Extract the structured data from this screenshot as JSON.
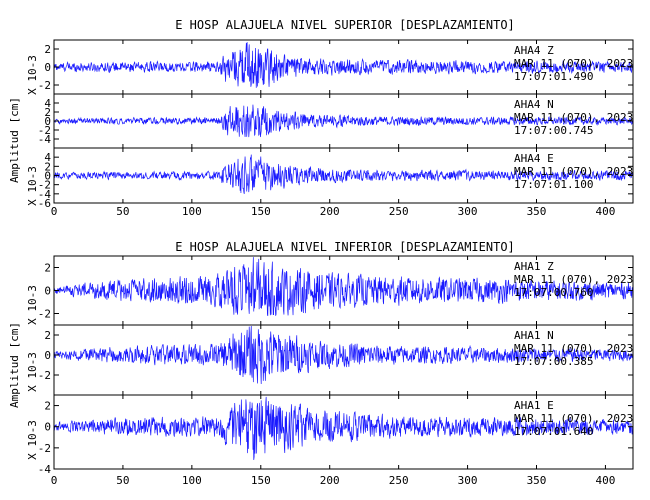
{
  "chart_data": [
    {
      "type": "line",
      "title": "E HOSP ALAJUELA NIVEL SUPERIOR [DESPLAZAMIENTO]",
      "ylabel": "Amplitud [cm]",
      "scale_label": "X 10-3",
      "xlim": [
        0,
        420
      ],
      "x_ticks": [
        0,
        50,
        100,
        150,
        200,
        250,
        300,
        350,
        400
      ],
      "series_color": "#1a1aff",
      "panels": [
        {
          "name": "AHA4 Z",
          "station": "AHA4",
          "component": "Z",
          "date": "MAR 11 (070), 2023",
          "time": "17:07:01.490",
          "ylim": [
            -3,
            3
          ],
          "y_ticks": [
            -2,
            0,
            2
          ],
          "envelope": [
            [
              0,
              0.5
            ],
            [
              120,
              0.6
            ],
            [
              125,
              1.8
            ],
            [
              135,
              2.3
            ],
            [
              140,
              3.0
            ],
            [
              150,
              2.5
            ],
            [
              165,
              1.6
            ],
            [
              180,
              1.0
            ],
            [
              230,
              0.8
            ],
            [
              300,
              0.7
            ],
            [
              420,
              0.6
            ]
          ]
        },
        {
          "name": "AHA4 N",
          "station": "AHA4",
          "component": "N",
          "date": "MAR 11 (070), 2023",
          "time": "17:07:00.745",
          "ylim": [
            -6,
            6
          ],
          "y_ticks": [
            -4,
            -2,
            0,
            2,
            4
          ],
          "envelope": [
            [
              0,
              0.6
            ],
            [
              120,
              0.8
            ],
            [
              125,
              3.0
            ],
            [
              140,
              4.5
            ],
            [
              150,
              4.0
            ],
            [
              165,
              2.5
            ],
            [
              185,
              1.5
            ],
            [
              240,
              1.0
            ],
            [
              420,
              0.8
            ]
          ]
        },
        {
          "name": "AHA4 E",
          "station": "AHA4",
          "component": "E",
          "date": "MAR 11 (070), 2023",
          "time": "17:07:01.100",
          "ylim": [
            -6,
            6
          ],
          "y_ticks": [
            -6,
            -4,
            -2,
            0,
            2,
            4
          ],
          "envelope": [
            [
              0,
              0.7
            ],
            [
              120,
              0.9
            ],
            [
              125,
              3.0
            ],
            [
              140,
              4.5
            ],
            [
              150,
              4.0
            ],
            [
              170,
              2.5
            ],
            [
              190,
              1.6
            ],
            [
              240,
              1.2
            ],
            [
              420,
              1.0
            ]
          ]
        }
      ]
    },
    {
      "type": "line",
      "title": "E HOSP ALAJUELA NIVEL INFERIOR [DESPLAZAMIENTO]",
      "ylabel": "Amplitud [cm]",
      "scale_label": "X 10-3",
      "xlim": [
        0,
        420
      ],
      "x_ticks": [
        0,
        50,
        100,
        150,
        200,
        250,
        300,
        350,
        400
      ],
      "series_color": "#1a1aff",
      "panels": [
        {
          "name": "AHA1 Z",
          "station": "AHA1",
          "component": "Z",
          "date": "MAR 11 (070), 2023",
          "time": "17:07:00.760",
          "ylim": [
            -3,
            3
          ],
          "y_ticks": [
            -2,
            0,
            2
          ],
          "envelope": [
            [
              0,
              0.3
            ],
            [
              20,
              0.7
            ],
            [
              60,
              1.0
            ],
            [
              120,
              1.4
            ],
            [
              135,
              2.2
            ],
            [
              145,
              2.9
            ],
            [
              160,
              2.3
            ],
            [
              200,
              1.5
            ],
            [
              260,
              1.2
            ],
            [
              330,
              1.0
            ],
            [
              420,
              0.7
            ]
          ]
        },
        {
          "name": "AHA1 N",
          "station": "AHA1",
          "component": "N",
          "date": "MAR 11 (070), 2023",
          "time": "17:07:00.385",
          "ylim": [
            -4,
            3
          ],
          "y_ticks": [
            -2,
            0,
            2
          ],
          "envelope": [
            [
              0,
              0.4
            ],
            [
              40,
              0.8
            ],
            [
              120,
              1.1
            ],
            [
              130,
              2.2
            ],
            [
              145,
              3.3
            ],
            [
              160,
              2.6
            ],
            [
              190,
              1.4
            ],
            [
              250,
              0.9
            ],
            [
              420,
              0.6
            ]
          ]
        },
        {
          "name": "AHA1 E",
          "station": "AHA1",
          "component": "E",
          "date": "MAR 11 (070), 2023",
          "time": "17:07:01.640",
          "ylim": [
            -4,
            3
          ],
          "y_ticks": [
            -4,
            -2,
            0,
            2
          ],
          "envelope": [
            [
              0,
              0.4
            ],
            [
              40,
              0.8
            ],
            [
              120,
              1.0
            ],
            [
              130,
              2.3
            ],
            [
              145,
              3.4
            ],
            [
              160,
              2.6
            ],
            [
              190,
              1.5
            ],
            [
              260,
              1.0
            ],
            [
              420,
              0.7
            ]
          ]
        }
      ]
    }
  ]
}
